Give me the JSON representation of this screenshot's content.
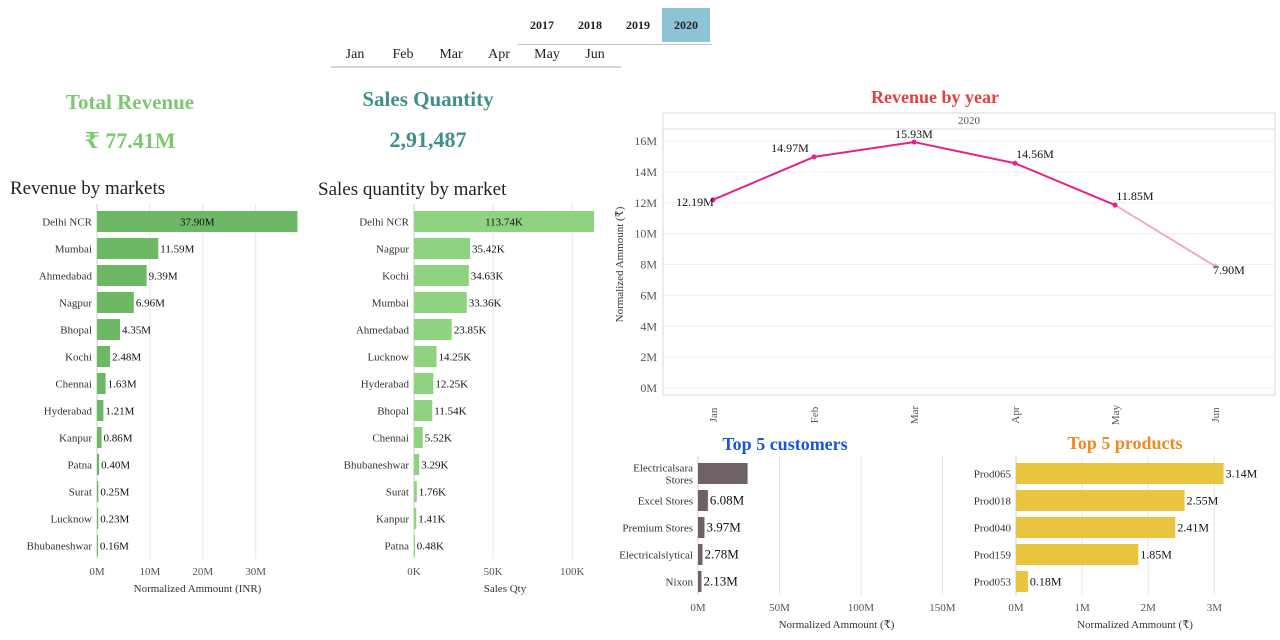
{
  "filters": {
    "years": [
      "2017",
      "2018",
      "2019",
      "2020"
    ],
    "selected_year": "2020",
    "months": [
      "Jan",
      "Feb",
      "Mar",
      "Apr",
      "May",
      "Jun"
    ]
  },
  "kpis": {
    "revenue_title": "Total Revenue",
    "revenue_value": "₹ 77.41M",
    "quantity_title": "Sales Quantity",
    "quantity_value": "2,91,487"
  },
  "colors": {
    "green_dark": "#6db865",
    "green_light": "#8fd27f",
    "pink": "#e8208a",
    "gray": "#6e6264",
    "gold": "#e9c53f",
    "title_green": "#7bc96f",
    "title_teal": "#3f8f8a",
    "title_red": "#e04040",
    "title_blue": "#1a56d6",
    "title_orange": "#ee8a22"
  },
  "chart_data": [
    {
      "type": "bar",
      "title": "Revenue by markets",
      "xlabel": "Normalized Ammount (INR)",
      "ylabel": "",
      "xlim": [
        0,
        38
      ],
      "ticks": [
        "0M",
        "10M",
        "20M",
        "30M"
      ],
      "tick_values": [
        0,
        10,
        20,
        30
      ],
      "categories": [
        "Delhi NCR",
        "Mumbai",
        "Ahmedabad",
        "Nagpur",
        "Bhopal",
        "Kochi",
        "Chennai",
        "Hyderabad",
        "Kanpur",
        "Patna",
        "Surat",
        "Lucknow",
        "Bhubaneshwar"
      ],
      "values": [
        37.9,
        11.59,
        9.39,
        6.96,
        4.35,
        2.48,
        1.63,
        1.21,
        0.86,
        0.4,
        0.25,
        0.23,
        0.16
      ],
      "labels": [
        "37.90M",
        "11.59M",
        "9.39M",
        "6.96M",
        "4.35M",
        "2.48M",
        "1.63M",
        "1.21M",
        "0.86M",
        "0.40M",
        "0.25M",
        "0.23M",
        "0.16M"
      ],
      "grid": true
    },
    {
      "type": "bar",
      "title": "Sales quantity by market",
      "xlabel": "Sales Qty",
      "ylabel": "",
      "xlim": [
        0,
        115
      ],
      "ticks": [
        "0K",
        "50K",
        "100K"
      ],
      "tick_values": [
        0,
        50,
        100
      ],
      "categories": [
        "Delhi NCR",
        "Nagpur",
        "Kochi",
        "Mumbai",
        "Ahmedabad",
        "Lucknow",
        "Hyderabad",
        "Bhopal",
        "Chennai",
        "Bhubaneshwar",
        "Surat",
        "Kanpur",
        "Patna"
      ],
      "values": [
        113.74,
        35.42,
        34.63,
        33.36,
        23.85,
        14.25,
        12.25,
        11.54,
        5.52,
        3.29,
        1.76,
        1.41,
        0.48
      ],
      "labels": [
        "113.74K",
        "35.42K",
        "34.63K",
        "33.36K",
        "23.85K",
        "14.25K",
        "12.25K",
        "11.54K",
        "5.52K",
        "3.29K",
        "1.76K",
        "1.41K",
        "0.48K"
      ],
      "grid": true
    },
    {
      "type": "line",
      "title": "Revenue by year",
      "panel_header": "2020",
      "xlabel": "",
      "ylabel": "Normalized Ammount (₹)",
      "ylim": [
        0,
        16.5
      ],
      "ticks": [
        "0M",
        "2M",
        "4M",
        "6M",
        "8M",
        "10M",
        "12M",
        "14M",
        "16M"
      ],
      "tick_values": [
        0,
        2,
        4,
        6,
        8,
        10,
        12,
        14,
        16
      ],
      "x": [
        "Jan",
        "Feb",
        "Mar",
        "Apr",
        "May",
        "Jun"
      ],
      "values": [
        12.19,
        14.97,
        15.93,
        14.56,
        11.85,
        7.9
      ],
      "labels": [
        "12.19M",
        "14.97M",
        "15.93M",
        "14.56M",
        "11.85M",
        "7.90M"
      ],
      "grid": true
    },
    {
      "type": "bar",
      "title": "Top 5 customers",
      "xlabel": "Normalized Ammount (₹)",
      "ylabel": "",
      "xlim": [
        0,
        170
      ],
      "ticks": [
        "0M",
        "50M",
        "100M",
        "150M"
      ],
      "tick_values": [
        0,
        50,
        100,
        150
      ],
      "categories": [
        "Electricalsara Stores",
        "Excel Stores",
        "Premium Stores",
        "Electricalslytical",
        "Nixon"
      ],
      "values": [
        30.43,
        6.08,
        3.97,
        2.78,
        2.13
      ],
      "labels": [
        "30.43M",
        "6.08M",
        "3.97M",
        "2.78M",
        "2.13M"
      ],
      "grid": true
    },
    {
      "type": "bar",
      "title": "Top 5 products",
      "xlabel": "Normalized Ammount (₹)",
      "ylabel": "",
      "xlim": [
        0,
        3.6
      ],
      "ticks": [
        "0M",
        "1M",
        "2M",
        "3M"
      ],
      "tick_values": [
        0,
        1,
        2,
        3
      ],
      "categories": [
        "Prod065",
        "Prod018",
        "Prod040",
        "Prod159",
        "Prod053"
      ],
      "values": [
        3.14,
        2.55,
        2.41,
        1.85,
        0.18
      ],
      "labels": [
        "3.14M",
        "2.55M",
        "2.41M",
        "1.85M",
        "0.18M"
      ],
      "grid": true
    }
  ]
}
